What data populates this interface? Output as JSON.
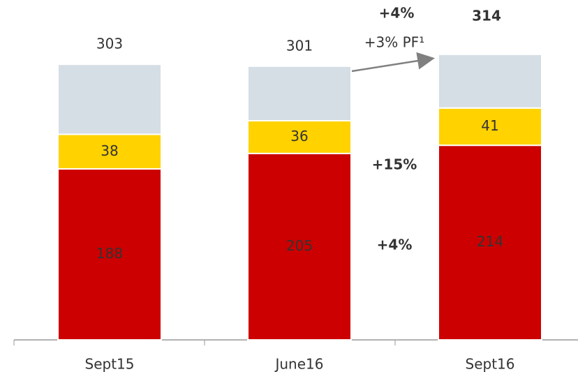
{
  "chart_data": {
    "type": "stacked_bar",
    "categories": [
      "Sept15",
      "June16",
      "Sept16"
    ],
    "series": [
      {
        "color": "#cc0000",
        "label_color": "#ffffff",
        "values": [
          188,
          205,
          214
        ],
        "labeled": true
      },
      {
        "color": "#ffd200",
        "label_color": "#333333",
        "values": [
          38,
          36,
          41
        ],
        "labeled": true
      },
      {
        "color": "#d5dde5",
        "label_color": "#333333",
        "values": [
          77,
          60,
          59
        ],
        "labeled": false
      }
    ],
    "totals": [
      303,
      301,
      314
    ],
    "highlight_last_total": true,
    "ylim": [
      0,
      330
    ],
    "annotations": [
      {
        "text": "+4%",
        "bold": true
      },
      {
        "text": "+3% PF¹",
        "bold": false
      },
      {
        "text": "+15%",
        "bold": true
      },
      {
        "text": "+4%",
        "bold": true
      }
    ]
  }
}
